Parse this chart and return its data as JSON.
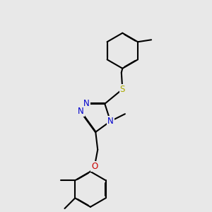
{
  "bg_color": "#e8e8e8",
  "bond_color": "#000000",
  "bond_width": 1.5,
  "atom_colors": {
    "N": "#0000cc",
    "S": "#aaaa00",
    "O": "#cc0000",
    "C": "#000000"
  },
  "font_size_atom": 8.5
}
